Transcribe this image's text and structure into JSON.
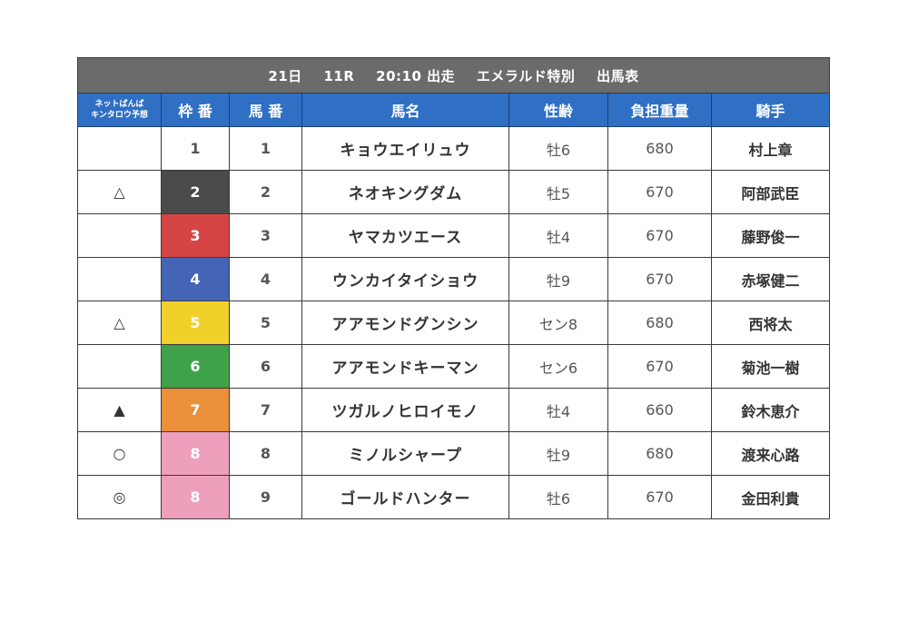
{
  "title": {
    "day": "21日",
    "race": "11R",
    "time": "20:10 出走",
    "race_name": "エメラルド特別",
    "doc": "出馬表"
  },
  "headers": {
    "yoso_line1": "ネットばんば",
    "yoso_line2": "キンタロウ予想",
    "waku": "枠 番",
    "umaban": "馬 番",
    "name": "馬名",
    "sex_age": "性齢",
    "weight": "負担重量",
    "jockey": "騎手"
  },
  "colors": {
    "header_blue": "#2f6fc4",
    "title_gray": "#6b6b6b",
    "waku_1": "#ffffff",
    "waku_2": "#4a4a4a",
    "waku_3": "#d64545",
    "waku_4": "#4465b5",
    "waku_5": "#f2d02a",
    "waku_6": "#3fa24a",
    "waku_7": "#ea8f3a",
    "waku_8": "#ee9fbb"
  },
  "rows": [
    {
      "mark": "",
      "waku": "1",
      "umaban": "1",
      "name": "キョウエイリュウ",
      "sex_age": "牡6",
      "weight": "680",
      "jockey": "村上章"
    },
    {
      "mark": "△",
      "waku": "2",
      "umaban": "2",
      "name": "ネオキングダム",
      "sex_age": "牡5",
      "weight": "670",
      "jockey": "阿部武臣"
    },
    {
      "mark": "",
      "waku": "3",
      "umaban": "3",
      "name": "ヤマカツエース",
      "sex_age": "牡4",
      "weight": "670",
      "jockey": "藤野俊一"
    },
    {
      "mark": "",
      "waku": "4",
      "umaban": "4",
      "name": "ウンカイタイショウ",
      "sex_age": "牡9",
      "weight": "670",
      "jockey": "赤塚健二"
    },
    {
      "mark": "△",
      "waku": "5",
      "umaban": "5",
      "name": "アアモンドグンシン",
      "sex_age": "セン8",
      "weight": "680",
      "jockey": "西将太"
    },
    {
      "mark": "",
      "waku": "6",
      "umaban": "6",
      "name": "アアモンドキーマン",
      "sex_age": "セン6",
      "weight": "670",
      "jockey": "菊池一樹"
    },
    {
      "mark": "▲",
      "waku": "7",
      "umaban": "7",
      "name": "ツガルノヒロイモノ",
      "sex_age": "牡4",
      "weight": "660",
      "jockey": "鈴木恵介"
    },
    {
      "mark": "○",
      "waku": "8",
      "umaban": "8",
      "name": "ミノルシャープ",
      "sex_age": "牡9",
      "weight": "680",
      "jockey": "渡来心路"
    },
    {
      "mark": "◎",
      "waku": "8",
      "umaban": "9",
      "name": "ゴールドハンター",
      "sex_age": "牡6",
      "weight": "670",
      "jockey": "金田利貴"
    }
  ]
}
